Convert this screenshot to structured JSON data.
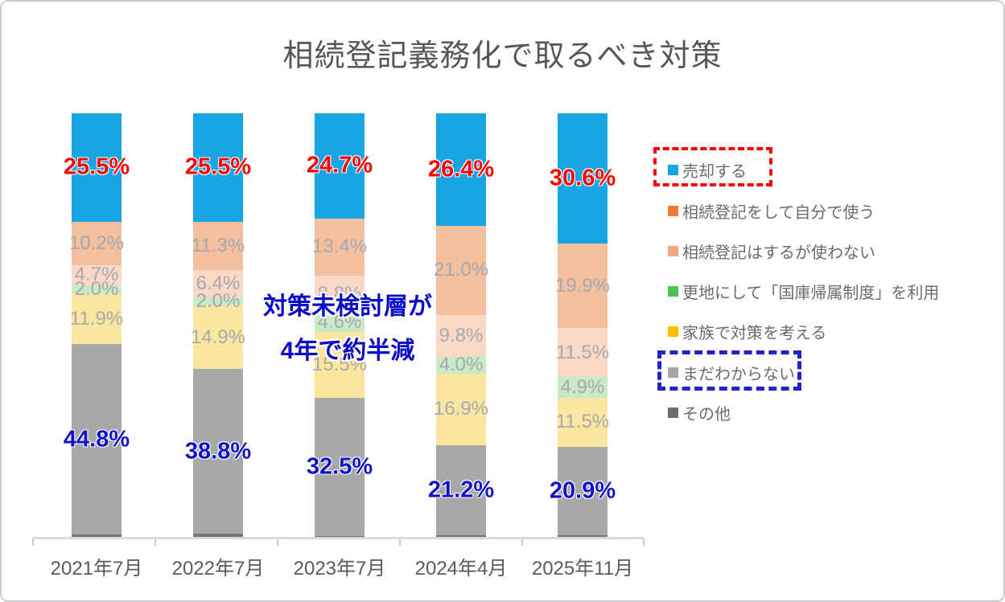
{
  "title": "相続登記義務化で取るべき対策",
  "annotation": {
    "line1": "対策未検討層が",
    "line2": "4年で約半減"
  },
  "chart_data": {
    "type": "bar",
    "stacked": true,
    "orientation": "vertical",
    "title": "相続登記義務化で取るべき対策",
    "xlabel": "",
    "ylabel": "",
    "ylim": [
      0,
      100
    ],
    "grid": false,
    "legend_position": "right",
    "categories": [
      "2021年7月",
      "2022年7月",
      "2023年7月",
      "2024年4月",
      "2025年11月"
    ],
    "series": [
      {
        "name": "売却する",
        "legend_color": "#17a5e3",
        "bar_color": "#17a5e3",
        "label_style": "red-bold",
        "values": [
          25.5,
          25.5,
          24.7,
          26.4,
          30.6
        ]
      },
      {
        "name": "相続登記をして自分で使う",
        "legend_color": "#ed7d31",
        "bar_color": "#f4bf9e",
        "label_style": "muted",
        "values": [
          10.2,
          11.3,
          13.4,
          21.0,
          19.9
        ]
      },
      {
        "name": "相続登記はするが使わない",
        "legend_color": "#f1a87c",
        "bar_color": "#f9d9c5",
        "label_style": "muted",
        "values": [
          4.7,
          6.4,
          8.8,
          9.8,
          11.5
        ]
      },
      {
        "name": "更地にして「国庫帰属制度」を利用",
        "legend_color": "#4dc24d",
        "bar_color": "#c8eac4",
        "label_style": "muted",
        "values": [
          2.0,
          2.0,
          4.6,
          4.0,
          4.9
        ]
      },
      {
        "name": "家族で対策を考える",
        "legend_color": "#ffc000",
        "bar_color": "#fbe6a0",
        "label_style": "muted",
        "values": [
          11.9,
          14.9,
          15.5,
          16.9,
          11.5
        ]
      },
      {
        "name": "まだわからない",
        "legend_color": "#a6a6a6",
        "bar_color": "#a8a8a8",
        "label_style": "blue-bold",
        "values": [
          44.8,
          38.8,
          32.5,
          21.2,
          20.9
        ]
      },
      {
        "name": "その他",
        "legend_color": "#6e6e6e",
        "bar_color": "#757575",
        "label_style": "none",
        "values": [
          0.9,
          1.1,
          0.5,
          0.7,
          0.7
        ]
      }
    ],
    "legend_highlights": [
      {
        "series": "売却する",
        "box_color": "#ff0000",
        "style": "dashed"
      },
      {
        "series": "まだわからない",
        "box_color": "#2323cc",
        "style": "dashed"
      }
    ],
    "annotation_text": "対策未検討層が4年で約半減"
  },
  "colors": {
    "red_value_label": "#ff0000",
    "blue_value_label": "#1212c8",
    "muted_value_label": "#a7a8b0",
    "annotation_text": "#0a0aca",
    "title_text": "#565656",
    "axis_line": "#dadada",
    "legend_text": "#6b6b6b"
  }
}
